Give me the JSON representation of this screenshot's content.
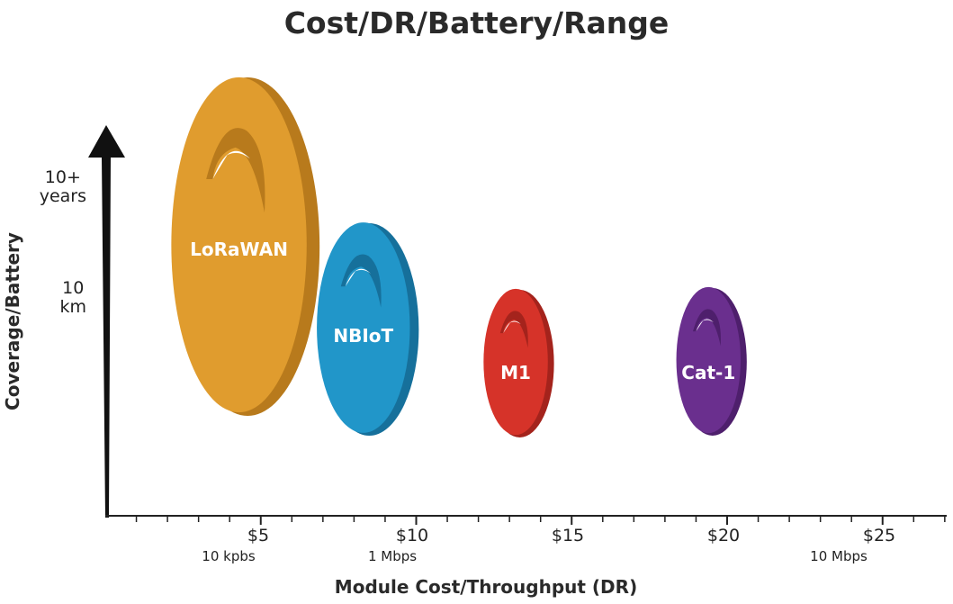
{
  "chart_data": {
    "type": "bubble",
    "title": "Cost/DR/Battery/Range",
    "xlabel": "Module Cost/Throughput (DR)",
    "ylabel": "Coverage/Battery",
    "xlim": [
      0,
      27.5
    ],
    "x_ticks": [
      {
        "value": 5,
        "label": "$5",
        "sub": "10 kpbs"
      },
      {
        "value": 10,
        "label": "$10",
        "sub": "1 Mbps"
      },
      {
        "value": 15,
        "label": "$15",
        "sub": ""
      },
      {
        "value": 20,
        "label": "$20",
        "sub": ""
      },
      {
        "value": 25,
        "label": "$25",
        "sub": "10 Mbps"
      }
    ],
    "y_ticks": [
      {
        "label": "10+\nyears",
        "level": "high"
      },
      {
        "label": "10\nkm",
        "level": "mid"
      }
    ],
    "series": [
      {
        "name": "LoRaWAN",
        "cost": 4.3,
        "coverage": "10+ years",
        "color": "#E09C2E",
        "shade": "#B87A1C"
      },
      {
        "name": "NBIoT",
        "cost": 8.3,
        "coverage": "10 km",
        "color": "#2196C9",
        "shade": "#16709B"
      },
      {
        "name": "M1",
        "cost": 13.2,
        "coverage": "low",
        "color": "#D63329",
        "shade": "#A4231C"
      },
      {
        "name": "Cat-1",
        "cost": 19.4,
        "coverage": "low",
        "color": "#6A2F8E",
        "shade": "#4E1F6C"
      }
    ]
  }
}
